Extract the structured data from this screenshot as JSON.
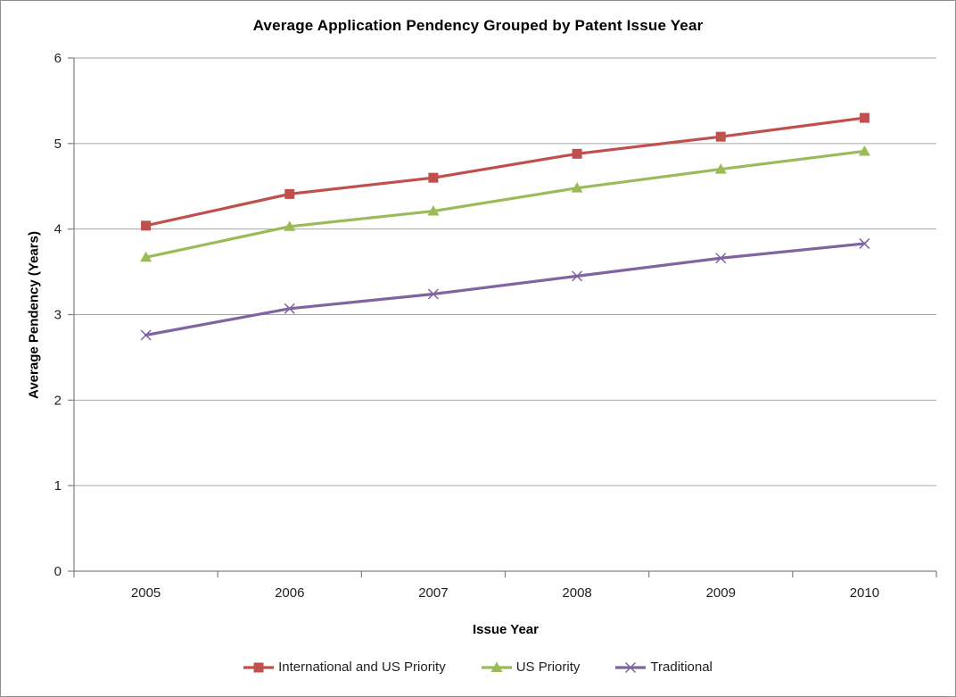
{
  "chart_data": {
    "type": "line",
    "title": "Average Application Pendency Grouped by Patent Issue Year",
    "xlabel": "Issue Year",
    "ylabel": "Average Pendency (Years)",
    "categories": [
      "2005",
      "2006",
      "2007",
      "2008",
      "2009",
      "2010"
    ],
    "y_ticks": [
      0,
      1,
      2,
      3,
      4,
      5,
      6
    ],
    "ylim": [
      0,
      6
    ],
    "grid": "horizontal",
    "legend_position": "bottom",
    "series": [
      {
        "name": "International and US Priority",
        "marker": "square",
        "color": "#C0504D",
        "values": [
          4.04,
          4.41,
          4.6,
          4.88,
          5.08,
          5.3
        ]
      },
      {
        "name": "US Priority",
        "marker": "triangle",
        "color": "#9BBB59",
        "values": [
          3.67,
          4.03,
          4.21,
          4.48,
          4.7,
          4.91
        ]
      },
      {
        "name": "Traditional",
        "marker": "x",
        "color": "#8064A2",
        "values": [
          2.76,
          3.07,
          3.24,
          3.45,
          3.66,
          3.83
        ]
      }
    ],
    "colors": {
      "gridline": "#A6A6A6",
      "axis": "#808080",
      "tick_text": "#1f1f1f",
      "border": "#8f8f8f",
      "background": "#FFFFFF"
    }
  }
}
